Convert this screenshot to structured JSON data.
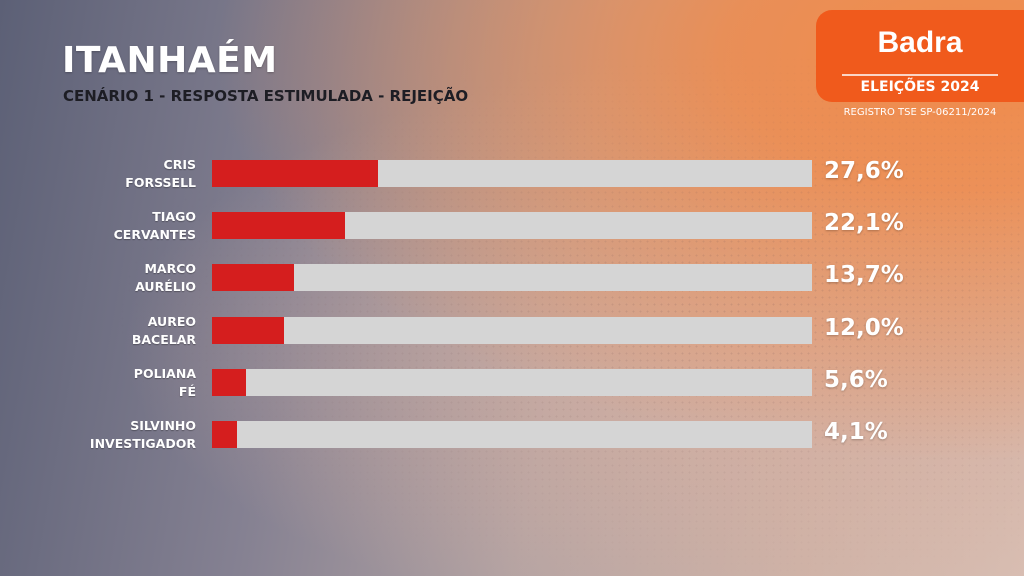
{
  "header": {
    "title": "ITANHAÉM",
    "subtitle": "CENÁRIO 1 - RESPOSTA ESTIMULADA - REJEIÇÃO"
  },
  "brand": {
    "name": "Badra",
    "subtitle": "ELEIÇÕES 2024",
    "registro": "REGISTRO TSE SP-06211/2024"
  },
  "colors": {
    "bar_fill": "#d51e1e",
    "bar_track": "#d5d5d5",
    "brand": "#f05a1c"
  },
  "chart_data": {
    "type": "bar",
    "orientation": "horizontal",
    "max": 100,
    "categories": [
      [
        "CRIS",
        "FORSSELL"
      ],
      [
        "TIAGO",
        "CERVANTES"
      ],
      [
        "MARCO",
        "AURÉLIO"
      ],
      [
        "AUREO",
        "BACELAR"
      ],
      [
        "POLIANA",
        "FÉ"
      ],
      [
        "SILVINHO",
        "INVESTIGADOR"
      ]
    ],
    "values": [
      27.6,
      22.1,
      13.7,
      12.0,
      5.6,
      4.1
    ],
    "value_labels": [
      "27,6%",
      "22,1%",
      "13,7%",
      "12,0%",
      "5,6%",
      "4,1%"
    ]
  }
}
